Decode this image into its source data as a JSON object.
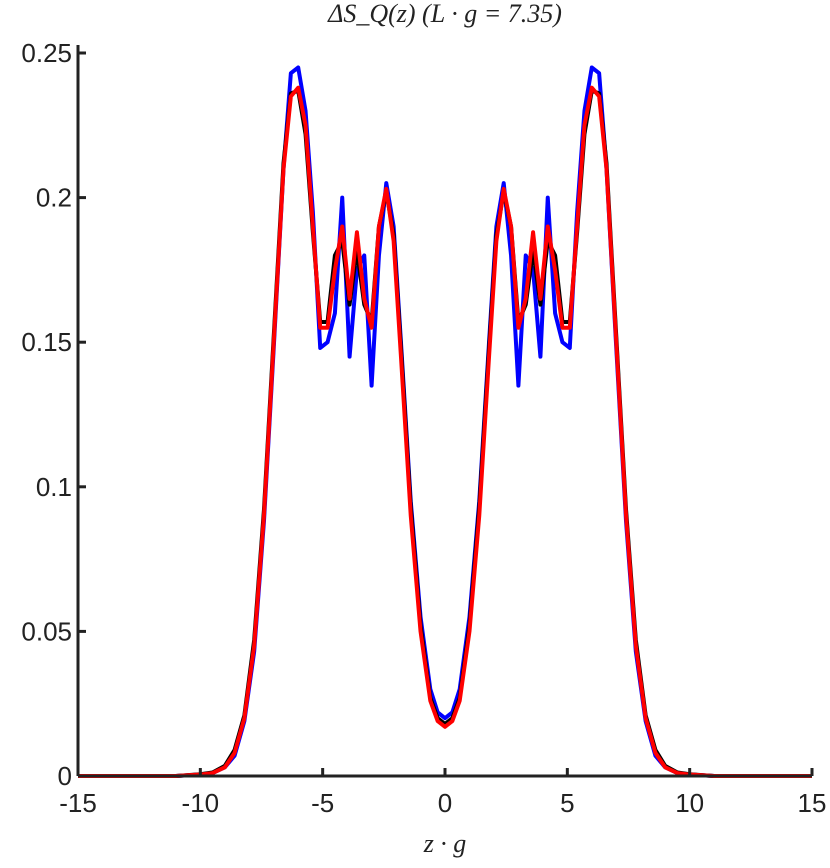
{
  "chart_data": {
    "type": "line",
    "title": "ΔS_Q(z) (L · g = 7.35)",
    "x_label": "z · g",
    "x": [
      -15,
      -13,
      -12,
      -11,
      -10,
      -9.5,
      -9,
      -8.6,
      -8.2,
      -7.8,
      -7.4,
      -7,
      -6.6,
      -6.3,
      -6,
      -5.7,
      -5.4,
      -5.1,
      -4.8,
      -4.5,
      -4.2,
      -3.9,
      -3.6,
      -3.3,
      -3,
      -2.7,
      -2.4,
      -2.1,
      -1.8,
      -1.4,
      -1,
      -0.6,
      -0.3,
      0,
      0.3,
      0.6,
      1,
      1.4,
      1.8,
      2.1,
      2.4,
      2.7,
      3,
      3.3,
      3.6,
      3.9,
      4.2,
      4.5,
      4.8,
      5.1,
      5.4,
      5.7,
      6,
      6.3,
      6.6,
      7,
      7.4,
      7.8,
      8.2,
      8.6,
      9,
      9.5,
      10,
      11,
      12,
      13,
      15
    ],
    "series": [
      {
        "color": "#0000ff",
        "values": [
          0,
          0,
          0,
          0,
          0.0005,
          0.001,
          0.003,
          0.007,
          0.019,
          0.043,
          0.088,
          0.148,
          0.21,
          0.243,
          0.245,
          0.23,
          0.195,
          0.148,
          0.15,
          0.16,
          0.2,
          0.145,
          0.175,
          0.18,
          0.135,
          0.18,
          0.205,
          0.19,
          0.15,
          0.095,
          0.055,
          0.03,
          0.022,
          0.02,
          0.022,
          0.03,
          0.055,
          0.095,
          0.15,
          0.19,
          0.205,
          0.18,
          0.135,
          0.18,
          0.175,
          0.145,
          0.2,
          0.16,
          0.15,
          0.148,
          0.195,
          0.23,
          0.245,
          0.243,
          0.21,
          0.148,
          0.088,
          0.043,
          0.019,
          0.007,
          0.003,
          0.001,
          0.0005,
          0,
          0,
          0,
          0
        ]
      },
      {
        "color": "#000000",
        "values": [
          0,
          0,
          0,
          0,
          0.0006,
          0.0012,
          0.0035,
          0.009,
          0.021,
          0.047,
          0.092,
          0.152,
          0.212,
          0.236,
          0.237,
          0.222,
          0.188,
          0.157,
          0.157,
          0.18,
          0.185,
          0.163,
          0.182,
          0.163,
          0.157,
          0.19,
          0.202,
          0.187,
          0.148,
          0.093,
          0.052,
          0.027,
          0.02,
          0.018,
          0.02,
          0.027,
          0.052,
          0.093,
          0.148,
          0.187,
          0.202,
          0.19,
          0.157,
          0.163,
          0.182,
          0.163,
          0.185,
          0.18,
          0.157,
          0.157,
          0.188,
          0.222,
          0.237,
          0.236,
          0.212,
          0.152,
          0.092,
          0.047,
          0.021,
          0.009,
          0.0035,
          0.0012,
          0.0006,
          0,
          0,
          0,
          0
        ]
      },
      {
        "color": "#ff0000",
        "values": [
          0,
          0,
          0,
          0,
          0.0005,
          0.001,
          0.003,
          0.008,
          0.02,
          0.045,
          0.09,
          0.15,
          0.21,
          0.235,
          0.238,
          0.225,
          0.19,
          0.155,
          0.155,
          0.175,
          0.19,
          0.165,
          0.188,
          0.165,
          0.155,
          0.19,
          0.203,
          0.185,
          0.145,
          0.09,
          0.05,
          0.026,
          0.019,
          0.017,
          0.019,
          0.026,
          0.05,
          0.09,
          0.145,
          0.185,
          0.203,
          0.19,
          0.155,
          0.165,
          0.188,
          0.165,
          0.19,
          0.175,
          0.155,
          0.155,
          0.19,
          0.225,
          0.238,
          0.235,
          0.21,
          0.15,
          0.09,
          0.045,
          0.02,
          0.008,
          0.003,
          0.001,
          0.0005,
          0,
          0,
          0,
          0
        ]
      }
    ],
    "xlim": [
      -15,
      15
    ],
    "xticks": [
      -15,
      -10,
      -5,
      0,
      5,
      10,
      15
    ],
    "ylim": [
      0,
      0.25
    ],
    "yticks": [
      0,
      0.05,
      0.1,
      0.15,
      0.2,
      0.25
    ]
  }
}
